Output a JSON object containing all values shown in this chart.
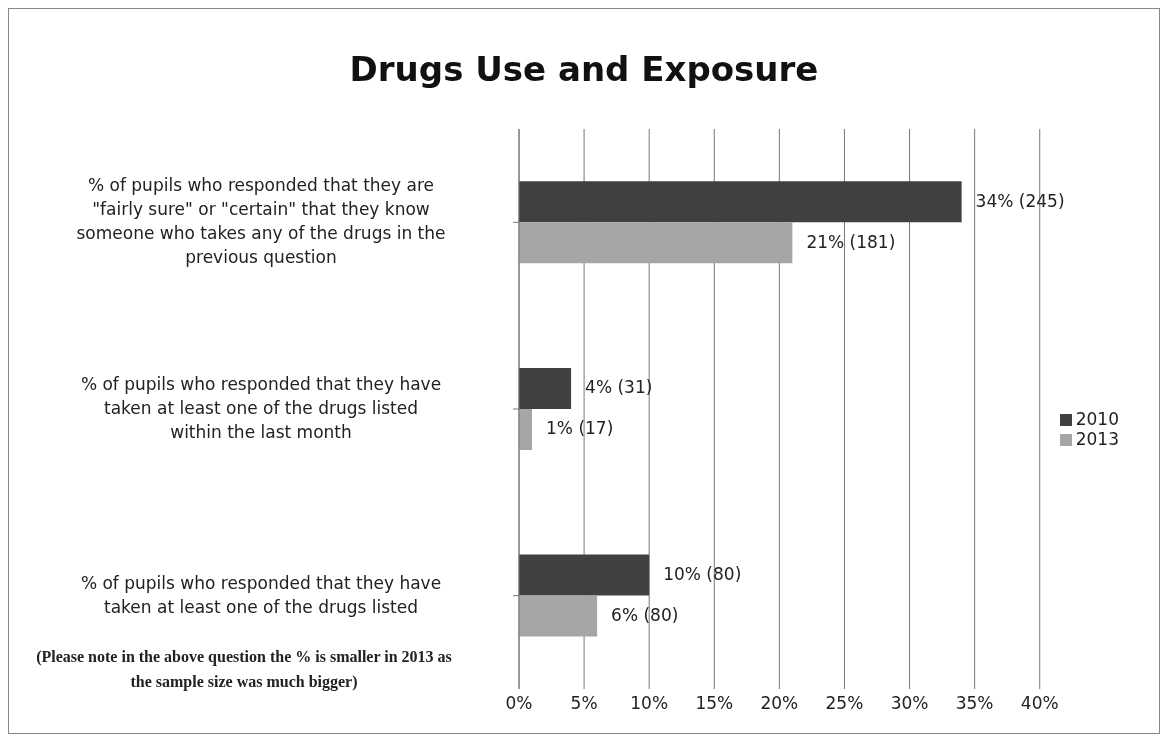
{
  "chart_data": {
    "type": "bar",
    "orientation": "horizontal",
    "title": "Drugs Use and Exposure",
    "categories": [
      "% of pupils who responded that they are \"fairly sure\" or \"certain\" that they know someone who takes any of the drugs in the previous question",
      "% of pupils who responded that they have taken at least one of the drugs listed within the last month",
      "% of pupils who responded that they have taken at least one of the drugs listed"
    ],
    "series": [
      {
        "name": "2010",
        "color": "#404040",
        "values": [
          34,
          4,
          10
        ],
        "value_labels": [
          "34% (245)",
          "4% (31)",
          "10% (80)"
        ]
      },
      {
        "name": "2013",
        "color": "#a6a6a6",
        "values": [
          21,
          1,
          6
        ],
        "value_labels": [
          "21% (181)",
          "1% (17)",
          "6% (80)"
        ]
      }
    ],
    "xlim": [
      0,
      40
    ],
    "xticks": [
      {
        "value": 0,
        "label": "0%"
      },
      {
        "value": 5,
        "label": "5%"
      },
      {
        "value": 10,
        "label": "10%"
      },
      {
        "value": 15,
        "label": "15%"
      },
      {
        "value": 20,
        "label": "20%"
      },
      {
        "value": 25,
        "label": "25%"
      },
      {
        "value": 30,
        "label": "30%"
      },
      {
        "value": 35,
        "label": "35%"
      },
      {
        "value": 40,
        "label": "40%"
      }
    ],
    "grid": "x",
    "legend": "right",
    "annotations": [
      "(Please note in the above question the % is smaller in 2013  as the sample size was much bigger)"
    ]
  }
}
